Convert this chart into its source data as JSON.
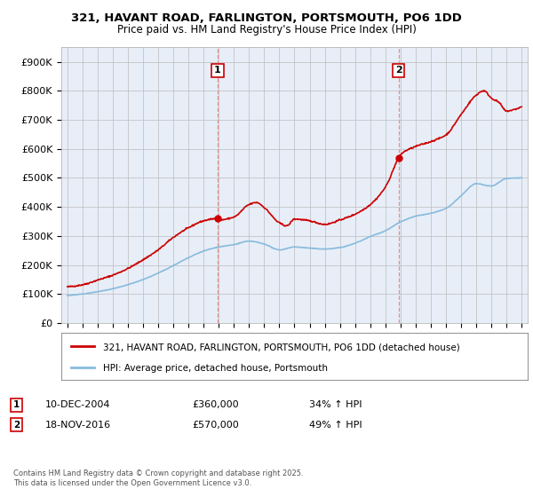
{
  "title": "321, HAVANT ROAD, FARLINGTON, PORTSMOUTH, PO6 1DD",
  "subtitle": "Price paid vs. HM Land Registry's House Price Index (HPI)",
  "background_color": "#ffffff",
  "plot_bg_color": "#e8eef8",
  "red_line_label": "321, HAVANT ROAD, FARLINGTON, PORTSMOUTH, PO6 1DD (detached house)",
  "blue_line_label": "HPI: Average price, detached house, Portsmouth",
  "annotation1_date": "10-DEC-2004",
  "annotation1_price": "£360,000",
  "annotation1_hpi": "34% ↑ HPI",
  "annotation2_date": "18-NOV-2016",
  "annotation2_price": "£570,000",
  "annotation2_hpi": "49% ↑ HPI",
  "footnote": "Contains HM Land Registry data © Crown copyright and database right 2025.\nThis data is licensed under the Open Government Licence v3.0.",
  "ylim": [
    0,
    950000
  ],
  "yticks": [
    0,
    100000,
    200000,
    300000,
    400000,
    500000,
    600000,
    700000,
    800000,
    900000
  ],
  "ytick_labels": [
    "£0",
    "£100K",
    "£200K",
    "£300K",
    "£400K",
    "£500K",
    "£600K",
    "£700K",
    "£800K",
    "£900K"
  ],
  "vline1_x": 2004.92,
  "vline2_x": 2016.88,
  "red_color": "#cc0000",
  "blue_color": "#88bbdd",
  "vline_color": "#ee8888",
  "marker1_x": 2004.92,
  "marker1_y": 360000,
  "marker2_x": 2016.88,
  "marker2_y": 570000,
  "xlim_left": 1994.6,
  "xlim_right": 2025.4
}
